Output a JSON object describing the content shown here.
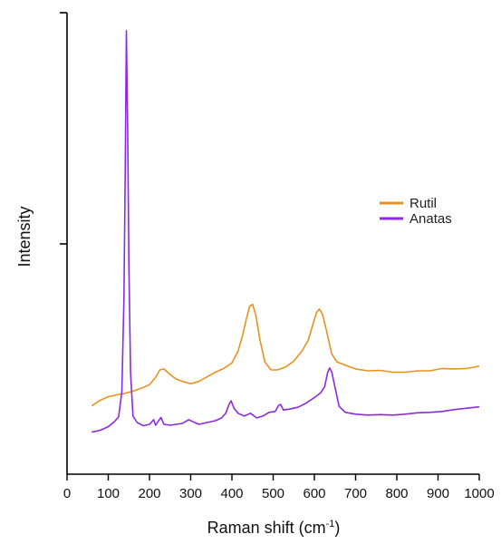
{
  "chart_data": {
    "type": "line",
    "title": "",
    "xlabel": "Raman shift (cm",
    "xlabel_sup": "-1",
    "xlabel_close": ")",
    "ylabel": "Intensity",
    "xlim": [
      0,
      1000
    ],
    "ylim": [
      0,
      100
    ],
    "y_ticks_labeled": false,
    "x_ticks": [
      0,
      100,
      200,
      300,
      400,
      500,
      600,
      700,
      800,
      900,
      1000
    ],
    "x_tick_labels": [
      "0",
      "100",
      "200",
      "300",
      "400",
      "500",
      "600",
      "700",
      "800",
      "900",
      "1000"
    ],
    "grid": false,
    "legend_position": "upper-right",
    "series": [
      {
        "name": "Rutil",
        "color": "#E8921F",
        "points": [
          [
            60,
            14.8
          ],
          [
            80,
            16.0
          ],
          [
            100,
            16.8
          ],
          [
            120,
            17.2
          ],
          [
            140,
            17.5
          ],
          [
            160,
            18.0
          ],
          [
            180,
            18.6
          ],
          [
            200,
            19.4
          ],
          [
            215,
            21.0
          ],
          [
            225,
            22.6
          ],
          [
            235,
            22.8
          ],
          [
            250,
            21.6
          ],
          [
            265,
            20.6
          ],
          [
            280,
            20.1
          ],
          [
            300,
            19.6
          ],
          [
            320,
            20.1
          ],
          [
            340,
            21.1
          ],
          [
            360,
            22.1
          ],
          [
            380,
            22.9
          ],
          [
            400,
            24.1
          ],
          [
            415,
            26.7
          ],
          [
            425,
            29.8
          ],
          [
            435,
            33.6
          ],
          [
            443,
            36.4
          ],
          [
            450,
            36.8
          ],
          [
            458,
            34.4
          ],
          [
            468,
            29.1
          ],
          [
            480,
            24.3
          ],
          [
            495,
            22.6
          ],
          [
            510,
            22.6
          ],
          [
            530,
            23.2
          ],
          [
            550,
            24.5
          ],
          [
            570,
            26.7
          ],
          [
            585,
            29.0
          ],
          [
            595,
            32.0
          ],
          [
            605,
            35.0
          ],
          [
            612,
            35.8
          ],
          [
            620,
            34.6
          ],
          [
            630,
            30.9
          ],
          [
            642,
            26.1
          ],
          [
            655,
            24.3
          ],
          [
            670,
            23.8
          ],
          [
            700,
            22.8
          ],
          [
            730,
            22.4
          ],
          [
            760,
            22.5
          ],
          [
            790,
            22.1
          ],
          [
            820,
            22.1
          ],
          [
            850,
            22.4
          ],
          [
            880,
            22.4
          ],
          [
            910,
            22.9
          ],
          [
            940,
            22.8
          ],
          [
            970,
            22.9
          ],
          [
            1000,
            23.4
          ]
        ]
      },
      {
        "name": "Anatas",
        "color": "#8A2BE2",
        "points": [
          [
            60,
            9.1
          ],
          [
            80,
            9.5
          ],
          [
            100,
            10.3
          ],
          [
            115,
            11.4
          ],
          [
            125,
            12.4
          ],
          [
            133,
            17.8
          ],
          [
            138,
            38.0
          ],
          [
            141,
            65.0
          ],
          [
            144,
            96.1
          ],
          [
            147,
            75.0
          ],
          [
            150,
            45.0
          ],
          [
            154,
            22.0
          ],
          [
            160,
            12.6
          ],
          [
            170,
            11.2
          ],
          [
            185,
            10.5
          ],
          [
            200,
            10.8
          ],
          [
            210,
            11.8
          ],
          [
            215,
            10.6
          ],
          [
            222,
            11.6
          ],
          [
            228,
            12.3
          ],
          [
            235,
            10.8
          ],
          [
            250,
            10.6
          ],
          [
            265,
            10.8
          ],
          [
            280,
            11.0
          ],
          [
            295,
            11.8
          ],
          [
            305,
            11.4
          ],
          [
            320,
            10.8
          ],
          [
            340,
            11.2
          ],
          [
            360,
            11.6
          ],
          [
            375,
            12.2
          ],
          [
            385,
            13.2
          ],
          [
            393,
            15.1
          ],
          [
            398,
            15.9
          ],
          [
            405,
            14.3
          ],
          [
            415,
            13.2
          ],
          [
            430,
            12.6
          ],
          [
            445,
            13.2
          ],
          [
            460,
            12.2
          ],
          [
            475,
            12.6
          ],
          [
            490,
            13.4
          ],
          [
            505,
            13.6
          ],
          [
            513,
            14.9
          ],
          [
            518,
            15.1
          ],
          [
            525,
            13.9
          ],
          [
            540,
            14.1
          ],
          [
            560,
            14.5
          ],
          [
            580,
            15.4
          ],
          [
            600,
            16.6
          ],
          [
            615,
            17.6
          ],
          [
            625,
            19.0
          ],
          [
            632,
            22.0
          ],
          [
            637,
            23.0
          ],
          [
            642,
            22.2
          ],
          [
            650,
            18.8
          ],
          [
            660,
            14.7
          ],
          [
            675,
            13.4
          ],
          [
            700,
            13.0
          ],
          [
            730,
            12.8
          ],
          [
            760,
            12.9
          ],
          [
            790,
            12.8
          ],
          [
            820,
            13.0
          ],
          [
            850,
            13.3
          ],
          [
            880,
            13.4
          ],
          [
            910,
            13.6
          ],
          [
            940,
            14.0
          ],
          [
            970,
            14.3
          ],
          [
            1000,
            14.6
          ]
        ]
      }
    ]
  }
}
